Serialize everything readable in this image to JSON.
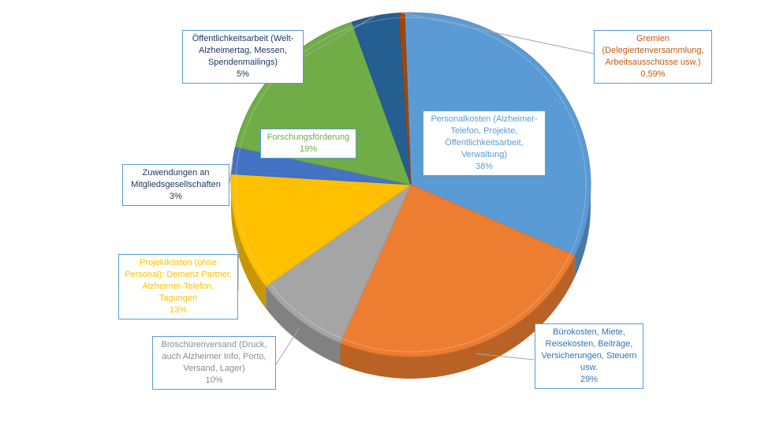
{
  "chart_data": {
    "type": "pie",
    "title": "",
    "legend": "none",
    "slices": [
      {
        "label": "Personalkosten (Alzheimer-Telefon, Projekte, Öffentlichkeitsarbeit, Verwaltung)",
        "value": 38,
        "display": "38%",
        "color": "#5b9bd5",
        "text_color": "#5b9bd5"
      },
      {
        "label": "Bürokosten, Miete, Reisekosten, Beiträge, Versicherungen, Steuern usw.",
        "value": 29,
        "display": "29%",
        "color": "#ed7d31",
        "text_color": "#2e75b6"
      },
      {
        "label": "Broschürenversand (Druck, auch Alzheimer Info, Porto, Versand, Lager)",
        "value": 10,
        "display": "10%",
        "color": "#a5a5a5",
        "text_color": "#8c8c8c"
      },
      {
        "label": "Projektkosten (ohne Personal): Demenz Partner, Alzheimer-Telefon, Tagungen",
        "value": 13,
        "display": "13%",
        "color": "#ffc000",
        "text_color": "#ffc000"
      },
      {
        "label": "Zuwendungen an Mitgliedsgesellschaften",
        "value": 3,
        "display": "3%",
        "color": "#4472c4",
        "text_color": "#1f3864"
      },
      {
        "label": "Forschungsförderung",
        "value": 19,
        "display": "19%",
        "color": "#70ad47",
        "text_color": "#70ad47"
      },
      {
        "label": "Öffentlichkeitsarbeit (Welt-Alzheimertag, Messen, Spendenmailings)",
        "value": 5,
        "display": "5%",
        "color": "#255e91",
        "text_color": "#1f3864"
      },
      {
        "label": "Gremien (Delegiertenversammlung, Arbeitsausschüsse usw.)",
        "value": 0.59,
        "display": "0,59%",
        "color": "#9e480e",
        "text_color": "#c55a11"
      }
    ]
  }
}
